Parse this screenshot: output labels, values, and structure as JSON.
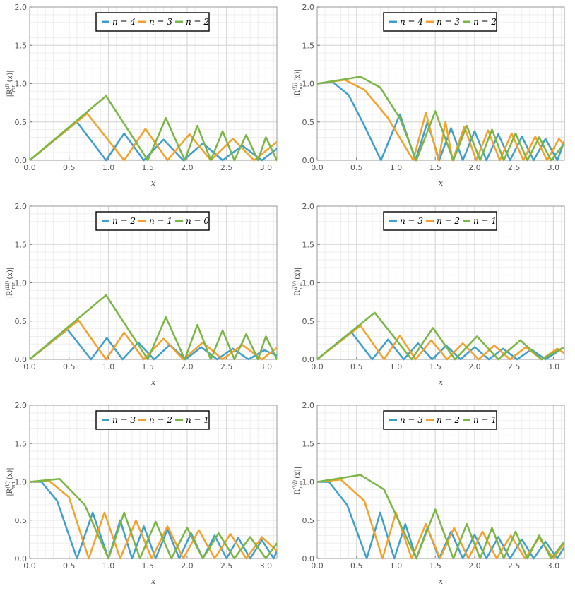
{
  "colors": {
    "series1": "#3e9fcf",
    "series2": "#f4a02a",
    "series3": "#7ab643"
  },
  "chart_data": [
    {
      "type": "line",
      "title": "",
      "xlabel": "x",
      "ylabel": "|R_mn^(I)(x)|",
      "ylabel_main": "|R",
      "ylabel_sup": "(I)",
      "ylabel_sub": "mn",
      "ylabel_tail": "(x)|",
      "xlim": [
        0,
        3.14
      ],
      "ylim": [
        0,
        2.0
      ],
      "xticks": [
        "0.0",
        "0.5",
        "1.0",
        "1.5",
        "2.0",
        "2.5",
        "3.0"
      ],
      "yticks": [
        "0.0",
        "0.5",
        "1.0",
        "1.5",
        "2.0"
      ],
      "legend_position": "top-center",
      "series": [
        {
          "name": "n = 4",
          "label": "n = 4",
          "color": "#3e9fcf",
          "x": [
            0,
            0.6,
            0.97,
            1.2,
            1.45,
            1.7,
            1.95,
            2.2,
            2.45,
            2.7,
            2.95,
            3.14
          ],
          "y": [
            0,
            0.5,
            0,
            0.35,
            0,
            0.27,
            0,
            0.22,
            0,
            0.19,
            0,
            0.15
          ]
        },
        {
          "name": "n = 3",
          "label": "n = 3",
          "color": "#f4a02a",
          "x": [
            0,
            0.73,
            1.2,
            1.47,
            1.75,
            2.03,
            2.3,
            2.58,
            2.85,
            3.14
          ],
          "y": [
            0,
            0.61,
            0,
            0.41,
            0,
            0.34,
            0,
            0.28,
            0,
            0.24
          ]
        },
        {
          "name": "n = 2",
          "label": "n = 2",
          "color": "#7ab643",
          "x": [
            0,
            0.97,
            1.5,
            1.73,
            1.97,
            2.13,
            2.3,
            2.45,
            2.6,
            2.75,
            2.9,
            3.0,
            3.14
          ],
          "y": [
            0,
            0.84,
            0,
            0.55,
            0,
            0.45,
            0,
            0.38,
            0,
            0.33,
            0,
            0.3,
            0
          ]
        }
      ]
    },
    {
      "type": "line",
      "title": "",
      "xlabel": "x",
      "ylabel": "|R_mn^(II)(x)|",
      "ylabel_main": "|R",
      "ylabel_sup": "(II)",
      "ylabel_sub": "mn",
      "ylabel_tail": "(x)|",
      "xlim": [
        0,
        3.14
      ],
      "ylim": [
        0,
        2.0
      ],
      "xticks": [
        "0.0",
        "0.5",
        "1.0",
        "1.5",
        "2.0",
        "2.5",
        "3.0"
      ],
      "yticks": [
        "0.0",
        "0.5",
        "1.0",
        "1.5",
        "2.0"
      ],
      "legend_position": "top-center",
      "series": [
        {
          "name": "n = 4",
          "label": "n = 4",
          "color": "#3e9fcf",
          "x": [
            0,
            0.2,
            0.4,
            0.6,
            0.81,
            1.05,
            1.25,
            1.4,
            1.55,
            1.7,
            1.85,
            2.0,
            2.15,
            2.3,
            2.45,
            2.6,
            2.75,
            2.9,
            3.05,
            3.14
          ],
          "y": [
            1.0,
            1.02,
            0.85,
            0.45,
            0,
            0.6,
            0,
            0.5,
            0,
            0.42,
            0,
            0.38,
            0,
            0.34,
            0,
            0.31,
            0,
            0.28,
            0,
            0.25
          ]
        },
        {
          "name": "n = 3",
          "label": "n = 3",
          "color": "#f4a02a",
          "x": [
            0,
            0.35,
            0.6,
            0.9,
            1.22,
            1.38,
            1.54,
            1.63,
            1.72,
            1.87,
            2.02,
            2.17,
            2.32,
            2.47,
            2.62,
            2.77,
            2.92,
            3.07,
            3.14
          ],
          "y": [
            1.0,
            1.05,
            0.92,
            0.55,
            0,
            0.62,
            0,
            0.5,
            0,
            0.44,
            0,
            0.39,
            0,
            0.35,
            0,
            0.31,
            0,
            0.28,
            0.2
          ]
        },
        {
          "name": "n = 2",
          "label": "n = 2",
          "color": "#7ab643",
          "x": [
            0,
            0.55,
            0.8,
            1.05,
            1.26,
            1.5,
            1.73,
            1.9,
            2.07,
            2.22,
            2.37,
            2.52,
            2.67,
            2.82,
            2.97,
            3.14
          ],
          "y": [
            1.0,
            1.09,
            0.95,
            0.55,
            0,
            0.64,
            0,
            0.45,
            0,
            0.4,
            0,
            0.35,
            0,
            0.3,
            0,
            0.22
          ]
        }
      ]
    },
    {
      "type": "line",
      "title": "",
      "xlabel": "x",
      "ylabel": "|R_mn^(III)(x)|",
      "ylabel_main": "|R",
      "ylabel_sup": "(III)",
      "ylabel_sub": "mn",
      "ylabel_tail": "(x)|",
      "xlim": [
        0,
        3.14
      ],
      "ylim": [
        0,
        2.0
      ],
      "xticks": [
        "0.0",
        "0.5",
        "1.0",
        "1.5",
        "2.0",
        "2.5",
        "3.0"
      ],
      "yticks": [
        "0.0",
        "0.5",
        "1.0",
        "1.5",
        "2.0"
      ],
      "legend_position": "top-center",
      "series": [
        {
          "name": "n = 2",
          "label": "n = 2",
          "color": "#3e9fcf",
          "x": [
            0,
            0.48,
            0.78,
            0.98,
            1.18,
            1.38,
            1.58,
            1.78,
            1.98,
            2.18,
            2.38,
            2.58,
            2.78,
            2.98,
            3.14
          ],
          "y": [
            0,
            0.39,
            0,
            0.28,
            0,
            0.22,
            0,
            0.19,
            0,
            0.16,
            0,
            0.14,
            0,
            0.12,
            0.05
          ]
        },
        {
          "name": "n = 1",
          "label": "n = 1",
          "color": "#f4a02a",
          "x": [
            0,
            0.62,
            0.97,
            1.2,
            1.45,
            1.7,
            1.95,
            2.2,
            2.45,
            2.7,
            2.95,
            3.14
          ],
          "y": [
            0,
            0.51,
            0,
            0.35,
            0,
            0.27,
            0,
            0.22,
            0,
            0.19,
            0,
            0.15
          ]
        },
        {
          "name": "n = 0",
          "label": "n = 0",
          "color": "#7ab643",
          "x": [
            0,
            0.97,
            1.5,
            1.73,
            1.97,
            2.13,
            2.3,
            2.45,
            2.6,
            2.75,
            2.9,
            3.0,
            3.14
          ],
          "y": [
            0,
            0.84,
            0,
            0.55,
            0,
            0.45,
            0,
            0.38,
            0,
            0.33,
            0,
            0.3,
            0
          ]
        }
      ]
    },
    {
      "type": "line",
      "title": "",
      "xlabel": "x",
      "ylabel": "|R_mn^(IV)(x)|",
      "ylabel_main": "|R",
      "ylabel_sup": "(IV)",
      "ylabel_sub": "mn",
      "ylabel_tail": "(x)|",
      "xlim": [
        0,
        3.14
      ],
      "ylim": [
        0,
        2.0
      ],
      "xticks": [
        "0.0",
        "0.5",
        "1.0",
        "1.5",
        "2.0",
        "2.5",
        "3.0"
      ],
      "yticks": [
        "0.0",
        "0.5",
        "1.0",
        "1.5",
        "2.0"
      ],
      "legend_position": "top-center",
      "series": [
        {
          "name": "n = 3",
          "label": "n = 3",
          "color": "#3e9fcf",
          "x": [
            0,
            0.43,
            0.7,
            0.9,
            1.1,
            1.28,
            1.46,
            1.64,
            1.82,
            2.0,
            2.18,
            2.36,
            2.54,
            2.72,
            2.9,
            3.08,
            3.14
          ],
          "y": [
            0,
            0.36,
            0,
            0.26,
            0,
            0.21,
            0,
            0.18,
            0,
            0.16,
            0,
            0.14,
            0,
            0.13,
            0,
            0.12,
            0.08
          ]
        },
        {
          "name": "n = 2",
          "label": "n = 2",
          "color": "#f4a02a",
          "x": [
            0,
            0.55,
            0.85,
            1.05,
            1.25,
            1.45,
            1.65,
            1.85,
            2.05,
            2.25,
            2.45,
            2.65,
            2.85,
            3.05,
            3.14
          ],
          "y": [
            0,
            0.44,
            0,
            0.31,
            0,
            0.25,
            0,
            0.21,
            0,
            0.18,
            0,
            0.16,
            0,
            0.14,
            0.08
          ]
        },
        {
          "name": "n = 1",
          "label": "n = 1",
          "color": "#7ab643",
          "x": [
            0,
            0.73,
            1.2,
            1.47,
            1.75,
            2.03,
            2.3,
            2.58,
            2.85,
            3.14
          ],
          "y": [
            0,
            0.61,
            0,
            0.41,
            0,
            0.3,
            0,
            0.25,
            0,
            0.16
          ]
        }
      ]
    },
    {
      "type": "line",
      "title": "",
      "xlabel": "x",
      "ylabel": "|R_mn^(V)(x)|",
      "ylabel_main": "|R",
      "ylabel_sup": "(V)",
      "ylabel_sub": "mn",
      "ylabel_tail": "(x)|",
      "xlim": [
        0,
        3.14
      ],
      "ylim": [
        0,
        2.0
      ],
      "xticks": [
        "0.0",
        "0.5",
        "1.0",
        "1.5",
        "2.0",
        "2.5",
        "3.0"
      ],
      "yticks": [
        "0.0",
        "0.5",
        "1.0",
        "1.5",
        "2.0"
      ],
      "legend_position": "top-center",
      "series": [
        {
          "name": "n = 3",
          "label": "n = 3",
          "color": "#3e9fcf",
          "x": [
            0,
            0.15,
            0.35,
            0.6,
            0.8,
            1.0,
            1.15,
            1.3,
            1.45,
            1.6,
            1.75,
            1.9,
            2.05,
            2.2,
            2.35,
            2.5,
            2.65,
            2.8,
            2.95,
            3.1,
            3.14
          ],
          "y": [
            1.0,
            1.0,
            0.75,
            0,
            0.6,
            0,
            0.5,
            0,
            0.42,
            0,
            0.38,
            0,
            0.33,
            0,
            0.3,
            0,
            0.27,
            0,
            0.24,
            0,
            0.1
          ]
        },
        {
          "name": "n = 2",
          "label": "n = 2",
          "color": "#f4a02a",
          "x": [
            0,
            0.25,
            0.5,
            0.75,
            0.95,
            1.15,
            1.35,
            1.55,
            1.75,
            1.95,
            2.15,
            2.35,
            2.55,
            2.75,
            2.95,
            3.14
          ],
          "y": [
            1.0,
            1.01,
            0.8,
            0,
            0.6,
            0,
            0.5,
            0,
            0.42,
            0,
            0.37,
            0,
            0.32,
            0,
            0.28,
            0.1
          ]
        },
        {
          "name": "n = 1",
          "label": "n = 1",
          "color": "#7ab643",
          "x": [
            0,
            0.38,
            0.7,
            1.0,
            1.2,
            1.4,
            1.6,
            1.8,
            2.0,
            2.2,
            2.4,
            2.6,
            2.8,
            3.0,
            3.14
          ],
          "y": [
            1.0,
            1.04,
            0.7,
            0,
            0.6,
            0,
            0.48,
            0,
            0.4,
            0,
            0.33,
            0,
            0.28,
            0,
            0.2
          ]
        }
      ]
    },
    {
      "type": "line",
      "title": "",
      "xlabel": "x",
      "ylabel": "|R_mn^(VI)(x)|",
      "ylabel_main": "|R",
      "ylabel_sup": "(VI)",
      "ylabel_sub": "mn",
      "ylabel_tail": "(x)|",
      "xlim": [
        0,
        3.14
      ],
      "ylim": [
        0,
        2.0
      ],
      "xticks": [
        "0.0",
        "0.5",
        "1.0",
        "1.5",
        "2.0",
        "2.5",
        "3.0"
      ],
      "yticks": [
        "0.0",
        "0.5",
        "1.0",
        "1.5",
        "2.0"
      ],
      "legend_position": "top-center",
      "series": [
        {
          "name": "n = 3",
          "label": "n = 3",
          "color": "#3e9fcf",
          "x": [
            0,
            0.15,
            0.38,
            0.63,
            0.8,
            0.98,
            1.12,
            1.26,
            1.4,
            1.55,
            1.7,
            1.85,
            2.0,
            2.15,
            2.3,
            2.45,
            2.6,
            2.75,
            2.9,
            3.05,
            3.14
          ],
          "y": [
            1.0,
            1.0,
            0.7,
            0,
            0.6,
            0,
            0.45,
            0,
            0.4,
            0,
            0.35,
            0,
            0.31,
            0,
            0.28,
            0,
            0.25,
            0,
            0.22,
            0,
            0.15
          ]
        },
        {
          "name": "n = 2",
          "label": "n = 2",
          "color": "#f4a02a",
          "x": [
            0,
            0.3,
            0.6,
            0.83,
            1.0,
            1.2,
            1.38,
            1.56,
            1.74,
            1.92,
            2.1,
            2.28,
            2.46,
            2.64,
            2.82,
            3.0,
            3.14
          ],
          "y": [
            1.0,
            1.03,
            0.75,
            0,
            0.6,
            0,
            0.45,
            0,
            0.4,
            0,
            0.35,
            0,
            0.3,
            0,
            0.27,
            0,
            0.2
          ]
        },
        {
          "name": "n = 1",
          "label": "n = 1",
          "color": "#7ab643",
          "x": [
            0,
            0.55,
            0.85,
            1.26,
            1.5,
            1.73,
            1.9,
            2.07,
            2.22,
            2.37,
            2.52,
            2.67,
            2.82,
            2.97,
            3.14
          ],
          "y": [
            1.0,
            1.09,
            0.9,
            0,
            0.64,
            0,
            0.45,
            0,
            0.4,
            0,
            0.35,
            0,
            0.3,
            0,
            0.22
          ]
        }
      ]
    }
  ]
}
